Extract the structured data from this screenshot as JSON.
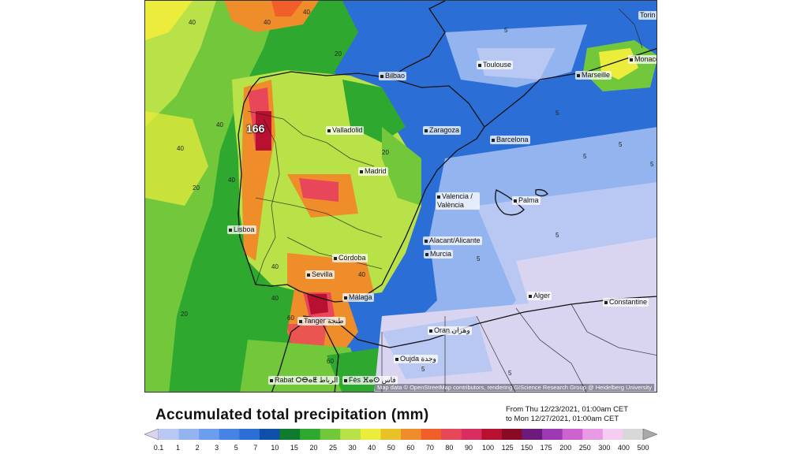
{
  "map": {
    "cities": [
      {
        "name": "Bilbao"
      },
      {
        "name": "Toulouse"
      },
      {
        "name": "Marseille"
      },
      {
        "name": "Monaco"
      },
      {
        "name": "Torin"
      },
      {
        "name": "Valladolid"
      },
      {
        "name": "Zaragoza"
      },
      {
        "name": "Barcelona"
      },
      {
        "name": "Madrid"
      },
      {
        "name": "Valencia / València"
      },
      {
        "name": "Palma"
      },
      {
        "name": "Lisboa"
      },
      {
        "name": "Alacant/Alicante"
      },
      {
        "name": "Murcia"
      },
      {
        "name": "Córdoba"
      },
      {
        "name": "Sevilla"
      },
      {
        "name": "Málaga"
      },
      {
        "name": "Alger"
      },
      {
        "name": "Constantine"
      },
      {
        "name": "Tanger طنجة"
      },
      {
        "name": "Oran وهران"
      },
      {
        "name": "Oujda وجدة"
      },
      {
        "name": "Rabat ⵔⴱⴰⵟ الرباط"
      },
      {
        "name": "Fès ⴼⴰⵙ فاس"
      }
    ],
    "max_value_label": "166",
    "attribution": "Map data © OpenStreetMap contributors, rendering GIScience Research Group @ Heidelberg University"
  },
  "title": "Accumulated total precipitation (mm)",
  "period": {
    "from": "From Thu 12/23/2021, 01:00am CET",
    "to": "to Mon 12/27/2021, 01:00am CET"
  },
  "legend": {
    "values": [
      "0.1",
      "1",
      "2",
      "3",
      "5",
      "7",
      "10",
      "15",
      "20",
      "25",
      "30",
      "40",
      "50",
      "60",
      "70",
      "80",
      "90",
      "100",
      "125",
      "150",
      "175",
      "200",
      "250",
      "300",
      "400",
      "500"
    ],
    "colors": [
      "#d9d4f0",
      "#b9c8f2",
      "#94b4f0",
      "#6d9ded",
      "#4783e4",
      "#2b6fd6",
      "#0e4fa8",
      "#0f7b2d",
      "#2ea82f",
      "#72c83a",
      "#b9e148",
      "#ecec3c",
      "#e8c227",
      "#ef8d2a",
      "#f05e2a",
      "#e8475a",
      "#d92d60",
      "#b81030",
      "#8a0a24",
      "#6c1b7c",
      "#9e39b4",
      "#cd63cf",
      "#e79be5",
      "#f5cdf3",
      "#d8d8d8",
      "#a8a8a8"
    ]
  }
}
